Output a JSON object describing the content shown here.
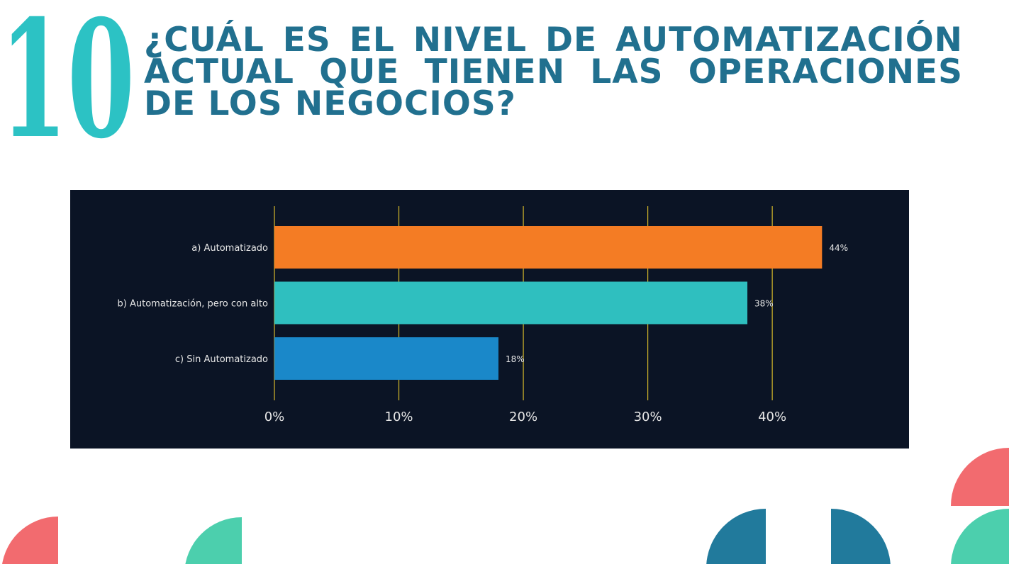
{
  "header": {
    "number": "10",
    "title": "¿CUÁL ES EL NIVEL DE AUTOMATIZACIÓN ACTUAL QUE TIENEN LAS OPERACIONES DE LOS NEGOCIOS?"
  },
  "colors": {
    "title": "#21708f",
    "number": "#2cc2c4",
    "panel_background": "#0b1425",
    "gridline": "#d4b82a",
    "decor_coral": "#f26b6f",
    "decor_mint": "#4ccfad",
    "decor_blue": "#217a9c"
  },
  "chart_data": {
    "type": "bar",
    "orientation": "horizontal",
    "categories": [
      "a) Automatizado",
      "b) Automatización, pero con alto",
      "c) Sin Automatizado"
    ],
    "values": [
      44,
      38,
      18
    ],
    "value_labels": [
      "44%",
      "38%",
      "18%"
    ],
    "bar_colors": [
      "#f47c24",
      "#2fbfbf",
      "#1a88c9"
    ],
    "xlim": [
      0,
      47
    ],
    "xticks": [
      0,
      10,
      20,
      30,
      40
    ],
    "xtick_labels": [
      "0%",
      "10%",
      "20%",
      "30%",
      "40%"
    ],
    "grid": true,
    "legend": "none",
    "title": "",
    "xlabel": "",
    "ylabel": ""
  }
}
